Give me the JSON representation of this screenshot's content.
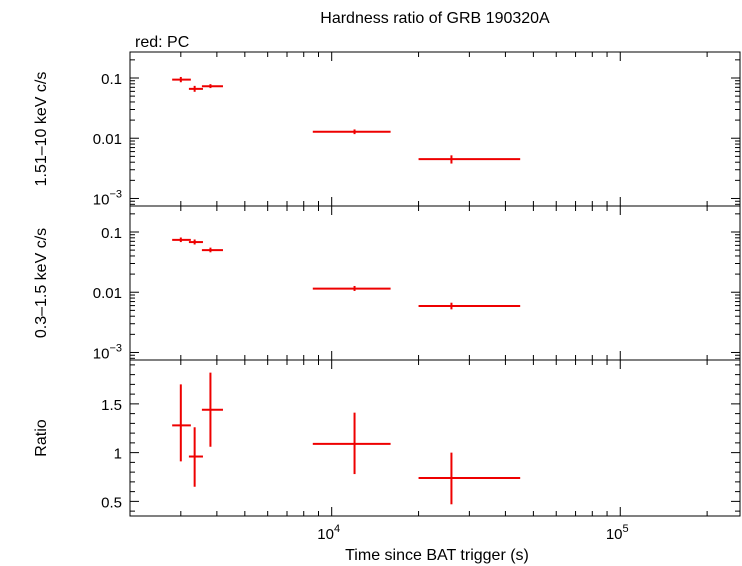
{
  "chart_data": {
    "type": "scatter",
    "title": "Hardness ratio of GRB 190320A",
    "legend_text": "red: PC",
    "xlabel": "Time since BAT trigger (s)",
    "xscale": "log",
    "xlim": [
      2000,
      260000
    ],
    "x_ticks": [
      {
        "value": 10000,
        "base": "10",
        "exp": "4"
      },
      {
        "value": 100000,
        "base": "10",
        "exp": "5"
      }
    ],
    "colors": {
      "series": "#ee0000",
      "axes": "#000000"
    },
    "panels": [
      {
        "id": "hard",
        "ylabel": "1.51–10 keV c/s",
        "yscale": "log",
        "ylim": [
          0.00075,
          0.27
        ],
        "y_ticks": [
          {
            "value": 0.1,
            "label": "0.1"
          },
          {
            "value": 0.01,
            "label": "0.01"
          },
          {
            "value": 0.001,
            "base": "10",
            "exp": "−3"
          }
        ],
        "points": [
          {
            "x": 3000,
            "xlo": 2800,
            "xhi": 3250,
            "y": 0.094,
            "ylo": 0.085,
            "yhi": 0.104
          },
          {
            "x": 3350,
            "xlo": 3200,
            "xhi": 3580,
            "y": 0.066,
            "ylo": 0.059,
            "yhi": 0.074
          },
          {
            "x": 3800,
            "xlo": 3550,
            "xhi": 4200,
            "y": 0.073,
            "ylo": 0.068,
            "yhi": 0.079
          },
          {
            "x": 12000,
            "xlo": 8600,
            "xhi": 16000,
            "y": 0.0128,
            "ylo": 0.0117,
            "yhi": 0.014
          },
          {
            "x": 26000,
            "xlo": 20000,
            "xhi": 45000,
            "y": 0.0045,
            "ylo": 0.0038,
            "yhi": 0.0052
          }
        ]
      },
      {
        "id": "soft",
        "ylabel": "0.3–1.5 keV c/s",
        "yscale": "log",
        "ylim": [
          0.00075,
          0.27
        ],
        "y_ticks": [
          {
            "value": 0.1,
            "label": "0.1"
          },
          {
            "value": 0.01,
            "label": "0.01"
          },
          {
            "value": 0.001,
            "base": "10",
            "exp": "−3"
          }
        ],
        "points": [
          {
            "x": 3000,
            "xlo": 2800,
            "xhi": 3250,
            "y": 0.074,
            "ylo": 0.068,
            "yhi": 0.081
          },
          {
            "x": 3350,
            "xlo": 3200,
            "xhi": 3580,
            "y": 0.068,
            "ylo": 0.062,
            "yhi": 0.075
          },
          {
            "x": 3800,
            "xlo": 3550,
            "xhi": 4200,
            "y": 0.05,
            "ylo": 0.046,
            "yhi": 0.055
          },
          {
            "x": 12000,
            "xlo": 8600,
            "xhi": 16000,
            "y": 0.0115,
            "ylo": 0.0105,
            "yhi": 0.0127
          },
          {
            "x": 26000,
            "xlo": 20000,
            "xhi": 45000,
            "y": 0.0059,
            "ylo": 0.0052,
            "yhi": 0.0067
          }
        ]
      },
      {
        "id": "ratio",
        "ylabel": "Ratio",
        "yscale": "linear",
        "ylim": [
          0.35,
          1.95
        ],
        "y_ticks": [
          {
            "value": 1.5,
            "label": "1.5"
          },
          {
            "value": 1,
            "label": "1"
          },
          {
            "value": 0.5,
            "label": "0.5"
          }
        ],
        "points": [
          {
            "x": 3000,
            "xlo": 2800,
            "xhi": 3250,
            "y": 1.28,
            "ylo": 0.91,
            "yhi": 1.7
          },
          {
            "x": 3350,
            "xlo": 3200,
            "xhi": 3580,
            "y": 0.96,
            "ylo": 0.65,
            "yhi": 1.26
          },
          {
            "x": 3800,
            "xlo": 3550,
            "xhi": 4200,
            "y": 1.44,
            "ylo": 1.06,
            "yhi": 1.82
          },
          {
            "x": 12000,
            "xlo": 8600,
            "xhi": 16000,
            "y": 1.09,
            "ylo": 0.78,
            "yhi": 1.41
          },
          {
            "x": 26000,
            "xlo": 20000,
            "xhi": 45000,
            "y": 0.74,
            "ylo": 0.47,
            "yhi": 1.0
          }
        ]
      }
    ]
  }
}
